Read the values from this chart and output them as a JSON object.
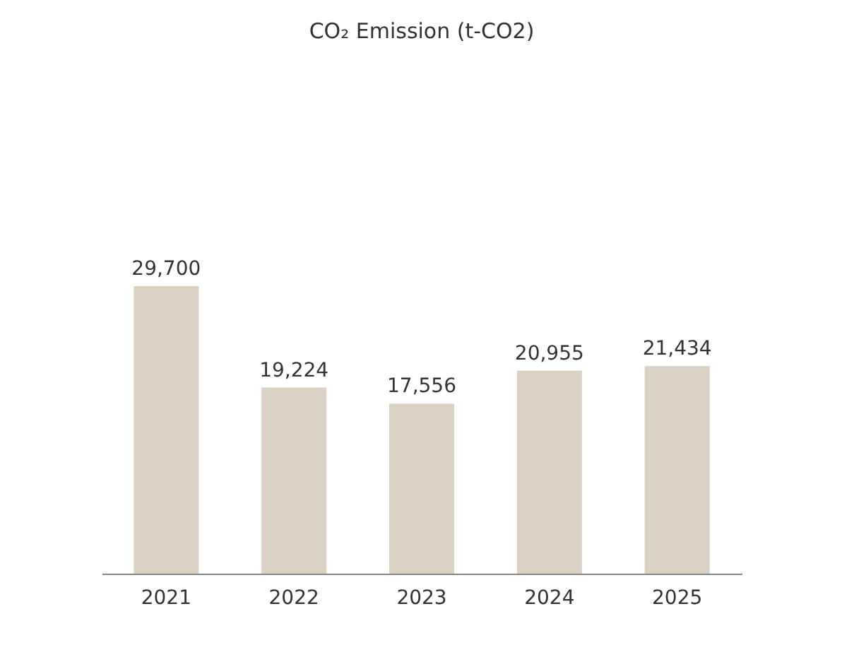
{
  "chart_data": {
    "type": "bar",
    "title": "CO₂ Emission (t-CO2)",
    "categories": [
      "2021",
      "2022",
      "2023",
      "2024",
      "2025"
    ],
    "values": [
      29700,
      19224,
      17556,
      20955,
      21434
    ],
    "value_labels": [
      "29,700",
      "19,224",
      "17,556",
      "20,955",
      "21,434"
    ],
    "color": "#dbd1c3"
  }
}
